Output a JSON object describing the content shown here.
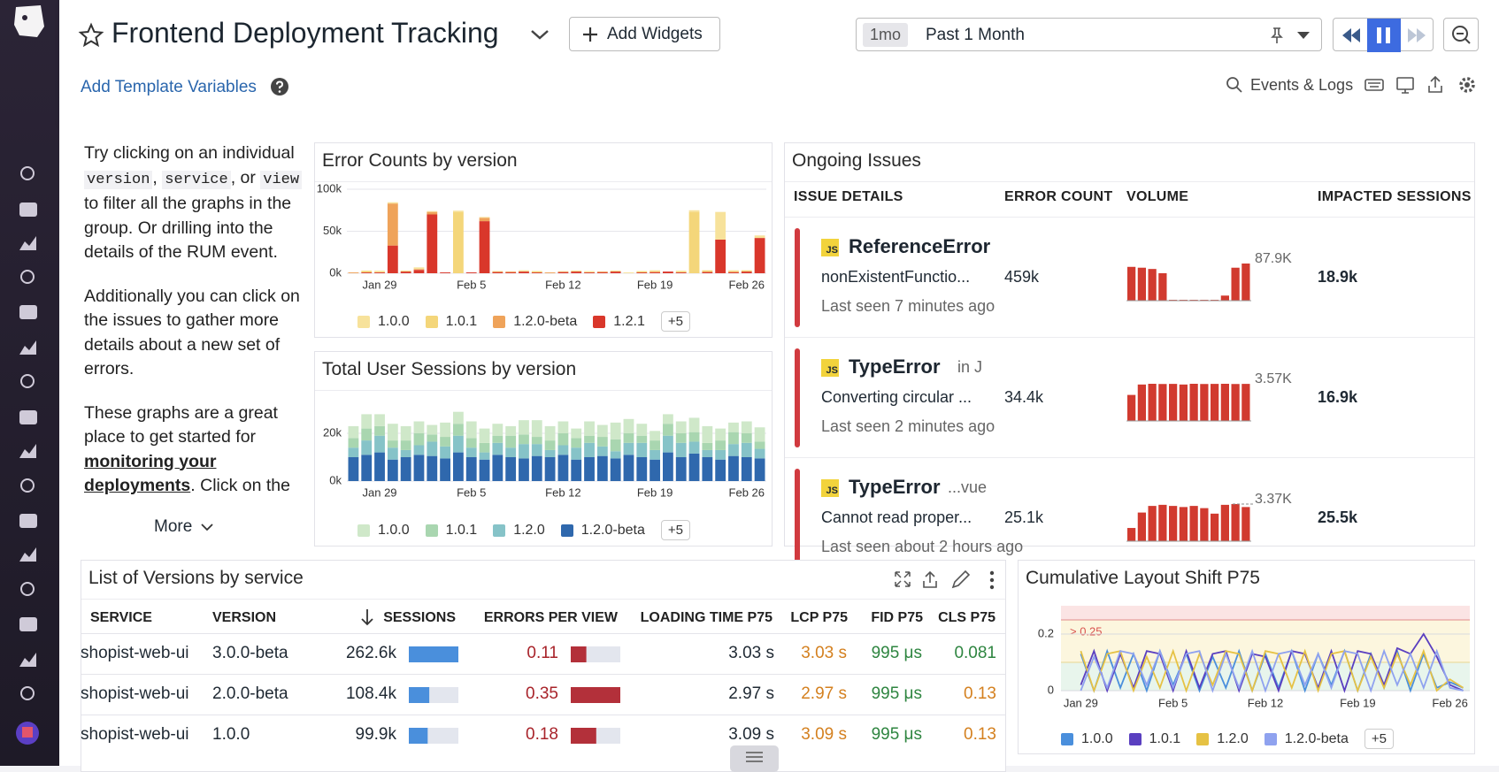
{
  "header": {
    "title": "Frontend Deployment Tracking",
    "add_widgets": "Add Widgets",
    "time_badge": "1mo",
    "time_range": "Past 1 Month",
    "template_variables": "Add Template Variables",
    "events_logs": "Events & Logs"
  },
  "note": {
    "p1": [
      "Try clicking on an individual ",
      "version",
      ", ",
      "service",
      ", or ",
      "view",
      " to filter all the graphs in the group. Or drilling into the details of the RUM event."
    ],
    "p2": "Additionally you can click on the issues to gather more details about a new set of errors.",
    "p3": [
      "These graphs are a great place to get started for ",
      "monitoring your deployments",
      ". Click on the"
    ],
    "more": "More"
  },
  "error_chart": {
    "type": "bar",
    "title": "Error Counts by version",
    "stacked": true,
    "categories": [
      null,
      null,
      "Jan 29",
      null,
      null,
      null,
      null,
      null,
      null,
      "Feb 5",
      null,
      null,
      null,
      null,
      null,
      null,
      "Feb 12",
      null,
      null,
      null,
      null,
      null,
      null,
      "Feb 19",
      null,
      null,
      null,
      null,
      null,
      null,
      "Feb 26",
      null
    ],
    "series": [
      {
        "name": "1.0.0",
        "color": "#f7e29b",
        "values": [
          0,
          0,
          2000,
          1500,
          0,
          2000,
          1000,
          0,
          1500,
          0,
          1000,
          0,
          0,
          1500,
          0,
          0,
          1000,
          0,
          1500,
          0,
          0,
          1000,
          0,
          1500,
          0,
          1000,
          2000,
          0,
          33000,
          1500,
          0,
          3000
        ]
      },
      {
        "name": "1.0.1",
        "color": "#f4d67a",
        "values": [
          0,
          2000,
          0,
          0,
          1000,
          0,
          0,
          0,
          73000,
          0,
          0,
          1000,
          0,
          0,
          1500,
          0,
          0,
          1000,
          0,
          0,
          1000,
          0,
          1500,
          0,
          0,
          1000,
          73000,
          2000,
          0,
          0,
          1500,
          0
        ]
      },
      {
        "name": "1.2.0-beta",
        "color": "#efa35a",
        "values": [
          1000,
          0,
          0,
          50000,
          0,
          1000,
          3000,
          0,
          0,
          0,
          4000,
          0,
          1000,
          0,
          0,
          1000,
          0,
          0,
          0,
          1000,
          0,
          0,
          0,
          1000,
          0,
          0,
          0,
          0,
          0,
          1000,
          0,
          0
        ]
      },
      {
        "name": "1.2.1",
        "color": "#d9372b",
        "values": [
          0,
          1000,
          1000,
          33000,
          2000,
          4000,
          70000,
          1000,
          0,
          1000,
          62000,
          1500,
          1000,
          2000,
          1000,
          0,
          1500,
          2000,
          1000,
          1000,
          2000,
          0,
          1000,
          1000,
          2000,
          1000,
          0,
          1500,
          40000,
          1000,
          2000,
          42000
        ]
      }
    ],
    "ylim": [
      0,
      100000
    ],
    "yticks": [
      {
        "value": 0,
        "label": "0k"
      },
      {
        "value": 50000,
        "label": "50k"
      },
      {
        "value": 100000,
        "label": "100k"
      }
    ],
    "grid": true,
    "legend_more": "+5"
  },
  "sessions_chart": {
    "type": "bar",
    "title": "Total User Sessions by version",
    "stacked": true,
    "categories": [
      null,
      null,
      "Jan 29",
      null,
      null,
      null,
      null,
      null,
      null,
      "Feb 5",
      null,
      null,
      null,
      null,
      null,
      null,
      "Feb 12",
      null,
      null,
      null,
      null,
      null,
      null,
      "Feb 19",
      null,
      null,
      null,
      null,
      null,
      null,
      "Feb 26",
      null
    ],
    "series": [
      {
        "name": "1.0.0",
        "color": "#cfe8c9",
        "values": [
          5000,
          6000,
          5000,
          7000,
          6000,
          5000,
          4000,
          6000,
          5000,
          7000,
          6000,
          5000,
          4000,
          6000,
          7000,
          6000,
          5000,
          4000,
          6000,
          5000,
          7000,
          6000,
          5000,
          4000,
          4000,
          5000,
          6000,
          7000,
          5000,
          4000,
          5000,
          6000
        ]
      },
      {
        "name": "1.0.1",
        "color": "#a9d6b0",
        "values": [
          4000,
          5000,
          4000,
          3000,
          4000,
          5000,
          3000,
          4000,
          5000,
          4000,
          4000,
          3000,
          5000,
          4000,
          3000,
          4000,
          5000,
          4000,
          3000,
          4000,
          5000,
          4000,
          3000,
          4000,
          5000,
          4000,
          4000,
          3000,
          4000,
          5000,
          4000,
          3000
        ]
      },
      {
        "name": "1.2.0",
        "color": "#86c3c8",
        "values": [
          4000,
          6000,
          7000,
          5000,
          3000,
          4000,
          6000,
          5000,
          7000,
          4000,
          3000,
          5000,
          4000,
          6000,
          5000,
          3000,
          4000,
          5000,
          6000,
          4000,
          3000,
          5000,
          6000,
          4000,
          7000,
          6000,
          5000,
          3000,
          4000,
          5000,
          6000,
          4000
        ]
      },
      {
        "name": "1.2.0-beta",
        "color": "#2f68ad",
        "values": [
          10000,
          11000,
          12000,
          9000,
          10000,
          11000,
          10500,
          9500,
          12000,
          10000,
          9000,
          11000,
          10000,
          9500,
          10500,
          10000,
          11000,
          9000,
          10000,
          10500,
          9500,
          11000,
          10000,
          9000,
          12000,
          10000,
          11500,
          10000,
          9000,
          10500,
          10000,
          9500
        ]
      }
    ],
    "ylim": [
      0,
      30000
    ],
    "yticks": [
      {
        "value": 0,
        "label": "0k"
      },
      {
        "value": 20000,
        "label": "20k"
      }
    ],
    "grid": true,
    "legend_more": "+5"
  },
  "issues": {
    "title": "Ongoing Issues",
    "columns": [
      "ISSUE DETAILS",
      "ERROR COUNT",
      "VOLUME",
      "IMPACTED SESSIONS"
    ],
    "rows": [
      {
        "badge": "JS",
        "type": "ReferenceError",
        "context": null,
        "message": "nonExistentFunctio...",
        "last_seen": "Last seen 7 minutes ago",
        "error_count": "459k",
        "volume": [
          80,
          78,
          75,
          65,
          2,
          2,
          2,
          2,
          2,
          12,
          78,
          87.9
        ],
        "volume_label": "87.9K",
        "sessions": "18.9k"
      },
      {
        "badge": "JS",
        "type": "TypeError",
        "context": "in J",
        "message": "Converting circular ...",
        "last_seen": "Last seen 2 minutes ago",
        "error_count": "34.4k",
        "volume": [
          2.5,
          3.5,
          3.57,
          3.55,
          3.56,
          3.5,
          3.57,
          3.55,
          3.56,
          3.57,
          3.55,
          3.56
        ],
        "volume_label": "3.57K",
        "sessions": "16.9k"
      },
      {
        "badge": "JS",
        "type": "TypeError",
        "context": "...vue",
        "message": "Cannot read proper...",
        "last_seen": "Last seen about 2 hours ago",
        "error_count": "25.1k",
        "volume": [
          1.2,
          2.6,
          3.2,
          3.3,
          3.2,
          3.1,
          3.2,
          3.0,
          2.5,
          3.3,
          3.37,
          3.1
        ],
        "volume_label": "3.37K",
        "sessions": "25.5k"
      }
    ]
  },
  "versions": {
    "title": "List of Versions by service",
    "columns": [
      "SERVICE",
      "VERSION",
      "SESSIONS",
      "ERRORS PER VIEW",
      "LOADING TIME P75",
      "LCP P75",
      "FID P75",
      "CLS P75"
    ],
    "rows": [
      {
        "service": "shopist-web-ui",
        "version": "3.0.0-beta",
        "sessions": 262600,
        "sessions_label": "262.6k",
        "errors_per_view": 0.11,
        "loading_time": "3.03 s",
        "lcp": "3.03 s",
        "fid": "995 μs",
        "cls": 0.081,
        "cls_color": "#2e8540"
      },
      {
        "service": "shopist-web-ui",
        "version": "2.0.0-beta",
        "sessions": 108400,
        "sessions_label": "108.4k",
        "errors_per_view": 0.35,
        "loading_time": "2.97 s",
        "lcp": "2.97 s",
        "fid": "995 μs",
        "cls": 0.13,
        "cls_color": "#d4801f"
      },
      {
        "service": "shopist-web-ui",
        "version": "1.0.0",
        "sessions": 99900,
        "sessions_label": "99.9k",
        "errors_per_view": 0.18,
        "loading_time": "3.09 s",
        "lcp": "3.09 s",
        "fid": "995 μs",
        "cls": 0.13,
        "cls_color": "#d4801f"
      }
    ]
  },
  "cls_chart": {
    "type": "line",
    "title": "Cumulative Layout Shift P75",
    "categories": [
      null,
      "Jan 29",
      null,
      null,
      null,
      null,
      null,
      null,
      "Feb 5",
      null,
      null,
      null,
      null,
      null,
      null,
      "Feb 12",
      null,
      null,
      null,
      null,
      null,
      null,
      "Feb 19",
      null,
      null,
      null,
      null,
      null,
      null,
      "Feb 26",
      null
    ],
    "series": [
      {
        "name": "1.0.0",
        "color": "#4a8fdc",
        "values": [
          null,
          0.13,
          0,
          0.14,
          0.01,
          0.13,
          0,
          0.14,
          0.02,
          0.13,
          0,
          0.12,
          0.01,
          0.14,
          0,
          0.13,
          0.01,
          0.14,
          0,
          0.13,
          0.02,
          0.14,
          0,
          0.13,
          0.01,
          0.14,
          0,
          0.13,
          0.01,
          0.03,
          0.01
        ]
      },
      {
        "name": "1.0.1",
        "color": "#5a3fc0",
        "values": [
          null,
          0.02,
          0.14,
          0,
          0.13,
          0.01,
          0.14,
          0.13,
          0,
          0.14,
          0.01,
          0.13,
          0.14,
          0,
          0.13,
          0.12,
          0,
          0.14,
          0.13,
          0.01,
          0.14,
          0,
          0.14,
          0.13,
          0.02,
          0.15,
          0.13,
          0.2,
          0.12,
          0.02,
          0
        ]
      },
      {
        "name": "1.2.0",
        "color": "#e6c244",
        "values": [
          null,
          0.14,
          0,
          0.13,
          0.14,
          0,
          0.12,
          0.01,
          0.14,
          0,
          0.13,
          0.02,
          0.14,
          0.13,
          0,
          0.14,
          0.13,
          0.01,
          0.14,
          0,
          0.13,
          0.14,
          0,
          0.12,
          0.01,
          0.13,
          0.02,
          0.14,
          0,
          0.04,
          0.01
        ]
      },
      {
        "name": "1.2.0-beta",
        "color": "#8fa2ef",
        "values": [
          null,
          0,
          0.12,
          0.01,
          0.14,
          0.13,
          0.02,
          0.14,
          0.01,
          0.13,
          0.14,
          0,
          0.13,
          0.01,
          0.14,
          0,
          0.13,
          0.14,
          0.02,
          0.13,
          0.01,
          0.14,
          0.13,
          0,
          0.14,
          0.02,
          0.13,
          0.01,
          0.14,
          0.01,
          0
        ]
      }
    ],
    "ylim": [
      0,
      0.3
    ],
    "yticks": [
      0,
      0.2
    ],
    "thresholds": [
      0.1,
      0.25
    ],
    "band_colors": [
      "#e8f5ec",
      "#fcf6de",
      "#fbe4e4"
    ],
    "threshold_label": "> 0.25",
    "grid": true,
    "legend_more": "+5"
  }
}
